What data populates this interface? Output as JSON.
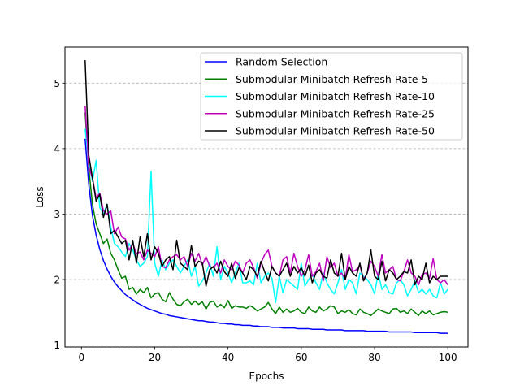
{
  "chart_data": {
    "type": "line",
    "title": "",
    "xlabel": "Epochs",
    "ylabel": "Loss",
    "xlim": [
      -4.5,
      105.5
    ],
    "ylim": [
      0.97,
      5.55
    ],
    "xticks": [
      0,
      20,
      40,
      60,
      80,
      100
    ],
    "yticks": [
      1,
      2,
      3,
      4,
      5
    ],
    "grid": {
      "y": true,
      "x": false,
      "style": "dashed"
    },
    "legend_position": "top-right",
    "x": [
      1,
      2,
      3,
      4,
      5,
      6,
      7,
      8,
      9,
      10,
      11,
      12,
      13,
      14,
      15,
      16,
      17,
      18,
      19,
      20,
      21,
      22,
      23,
      24,
      25,
      26,
      27,
      28,
      29,
      30,
      31,
      32,
      33,
      34,
      35,
      36,
      37,
      38,
      39,
      40,
      41,
      42,
      43,
      44,
      45,
      46,
      47,
      48,
      49,
      50,
      51,
      52,
      53,
      54,
      55,
      56,
      57,
      58,
      59,
      60,
      61,
      62,
      63,
      64,
      65,
      66,
      67,
      68,
      69,
      70,
      71,
      72,
      73,
      74,
      75,
      76,
      77,
      78,
      79,
      80,
      81,
      82,
      83,
      84,
      85,
      86,
      87,
      88,
      89,
      90,
      91,
      92,
      93,
      94,
      95,
      96,
      97,
      98,
      99,
      100
    ],
    "series": [
      {
        "name": "Random Selection",
        "color": "#0000ff",
        "values": [
          4.15,
          3.45,
          2.98,
          2.68,
          2.46,
          2.29,
          2.16,
          2.05,
          1.96,
          1.89,
          1.83,
          1.77,
          1.73,
          1.69,
          1.65,
          1.62,
          1.59,
          1.56,
          1.54,
          1.52,
          1.5,
          1.48,
          1.47,
          1.45,
          1.44,
          1.43,
          1.42,
          1.41,
          1.4,
          1.39,
          1.38,
          1.37,
          1.37,
          1.36,
          1.35,
          1.35,
          1.34,
          1.33,
          1.33,
          1.32,
          1.32,
          1.31,
          1.31,
          1.3,
          1.3,
          1.3,
          1.29,
          1.29,
          1.28,
          1.28,
          1.28,
          1.27,
          1.27,
          1.27,
          1.26,
          1.26,
          1.26,
          1.26,
          1.25,
          1.25,
          1.25,
          1.25,
          1.24,
          1.24,
          1.24,
          1.24,
          1.23,
          1.23,
          1.23,
          1.23,
          1.23,
          1.22,
          1.22,
          1.22,
          1.22,
          1.22,
          1.22,
          1.21,
          1.21,
          1.21,
          1.21,
          1.21,
          1.21,
          1.2,
          1.2,
          1.2,
          1.2,
          1.2,
          1.2,
          1.2,
          1.19,
          1.19,
          1.19,
          1.19,
          1.19,
          1.19,
          1.19,
          1.18,
          1.18,
          1.18
        ]
      },
      {
        "name": "Submodular Minibatch Refresh Rate-5",
        "color": "#008000",
        "values": [
          4.55,
          3.7,
          3.15,
          2.85,
          2.7,
          2.55,
          2.62,
          2.4,
          2.3,
          2.15,
          2.02,
          2.05,
          1.85,
          1.88,
          1.78,
          1.85,
          1.8,
          1.88,
          1.72,
          1.78,
          1.8,
          1.7,
          1.66,
          1.8,
          1.7,
          1.62,
          1.6,
          1.66,
          1.7,
          1.62,
          1.67,
          1.62,
          1.66,
          1.55,
          1.65,
          1.67,
          1.58,
          1.62,
          1.57,
          1.68,
          1.56,
          1.6,
          1.58,
          1.58,
          1.56,
          1.6,
          1.57,
          1.52,
          1.55,
          1.58,
          1.65,
          1.55,
          1.48,
          1.58,
          1.5,
          1.55,
          1.5,
          1.52,
          1.56,
          1.5,
          1.48,
          1.58,
          1.52,
          1.5,
          1.58,
          1.52,
          1.55,
          1.6,
          1.58,
          1.48,
          1.52,
          1.5,
          1.54,
          1.48,
          1.46,
          1.55,
          1.5,
          1.48,
          1.45,
          1.5,
          1.55,
          1.52,
          1.5,
          1.48,
          1.55,
          1.56,
          1.5,
          1.52,
          1.48,
          1.55,
          1.5,
          1.45,
          1.52,
          1.48,
          1.52,
          1.46,
          1.48,
          1.5,
          1.51,
          1.5
        ]
      },
      {
        "name": "Submodular Minibatch Refresh Rate-10",
        "color": "#00ffff",
        "values": [
          4.3,
          3.8,
          3.5,
          3.82,
          3.1,
          3.0,
          3.15,
          2.8,
          2.55,
          2.5,
          2.42,
          2.35,
          2.55,
          2.45,
          2.3,
          2.2,
          2.25,
          2.35,
          3.65,
          2.25,
          2.05,
          2.3,
          2.15,
          2.25,
          2.3,
          2.2,
          2.1,
          2.2,
          2.3,
          2.05,
          2.2,
          1.9,
          1.98,
          2.1,
          2.25,
          2.05,
          2.5,
          2.0,
          2.2,
          2.1,
          1.95,
          2.1,
          2.25,
          1.95,
          1.95,
          1.98,
          1.92,
          2.25,
          1.95,
          2.05,
          2.1,
          2.02,
          1.65,
          2.05,
          1.8,
          2.0,
          1.95,
          1.9,
          1.85,
          2.25,
          1.9,
          2.0,
          2.08,
          1.95,
          1.85,
          2.1,
          1.95,
          1.85,
          1.78,
          1.95,
          2.15,
          1.85,
          2.0,
          1.95,
          1.78,
          2.1,
          2.05,
          2.0,
          1.92,
          1.78,
          2.1,
          1.85,
          1.92,
          1.8,
          1.78,
          1.95,
          2.0,
          1.92,
          1.75,
          1.85,
          1.98,
          1.8,
          1.85,
          1.78,
          1.85,
          1.75,
          1.72,
          1.95,
          1.78,
          1.85
        ]
      },
      {
        "name": "Submodular Minibatch Refresh Rate-25",
        "color": "#bf00bf",
        "values": [
          4.65,
          3.72,
          3.55,
          3.25,
          3.32,
          3.05,
          3.0,
          3.05,
          2.7,
          2.8,
          2.65,
          2.62,
          2.45,
          2.55,
          2.4,
          2.42,
          2.3,
          2.45,
          2.4,
          2.35,
          2.5,
          2.2,
          2.18,
          2.3,
          2.35,
          2.38,
          2.3,
          2.35,
          2.2,
          2.4,
          2.28,
          2.4,
          2.22,
          2.35,
          2.2,
          2.18,
          2.25,
          2.1,
          2.3,
          2.2,
          2.15,
          2.28,
          2.22,
          2.1,
          2.25,
          2.3,
          2.18,
          2.02,
          2.25,
          2.38,
          2.45,
          2.2,
          2.1,
          2.05,
          2.3,
          2.35,
          2.1,
          2.4,
          2.2,
          2.05,
          2.15,
          2.38,
          2.05,
          2.12,
          2.25,
          1.98,
          2.35,
          2.18,
          2.25,
          2.05,
          2.1,
          2.0,
          2.38,
          2.12,
          2.15,
          2.22,
          2.0,
          2.1,
          2.28,
          2.2,
          2.05,
          2.38,
          2.1,
          2.15,
          2.2,
          2.0,
          1.98,
          2.12,
          2.3,
          2.1,
          2.05,
          1.92,
          2.08,
          2.1,
          2.02,
          2.32,
          2.0,
          1.95,
          2.0,
          1.92
        ]
      },
      {
        "name": "Submodular Minibatch Refresh Rate-50",
        "color": "#000000",
        "values": [
          5.35,
          3.9,
          3.55,
          3.2,
          3.3,
          2.95,
          3.15,
          2.7,
          2.75,
          2.65,
          2.55,
          2.6,
          2.3,
          2.6,
          2.25,
          2.65,
          2.35,
          2.7,
          2.3,
          2.5,
          2.4,
          2.2,
          2.3,
          2.35,
          2.15,
          2.6,
          2.25,
          2.2,
          2.15,
          2.52,
          2.2,
          2.28,
          2.25,
          1.9,
          2.15,
          2.2,
          2.1,
          2.28,
          2.12,
          2.05,
          2.25,
          2.02,
          2.18,
          2.1,
          2.0,
          2.2,
          2.15,
          2.05,
          2.28,
          2.12,
          1.98,
          2.2,
          2.1,
          2.05,
          2.15,
          2.25,
          2.05,
          2.2,
          2.1,
          2.18,
          2.05,
          2.22,
          1.95,
          2.1,
          2.15,
          2.05,
          2.02,
          2.3,
          2.1,
          2.05,
          2.4,
          2.0,
          2.2,
          2.1,
          2.05,
          2.25,
          1.98,
          2.1,
          2.45,
          2.05,
          2.0,
          2.28,
          1.98,
          2.15,
          2.1,
          2.0,
          2.05,
          2.12,
          2.1,
          2.3,
          1.92,
          2.05,
          2.0,
          2.25,
          1.95,
          2.05,
          2.0,
          2.05,
          2.05,
          2.05
        ]
      }
    ]
  }
}
